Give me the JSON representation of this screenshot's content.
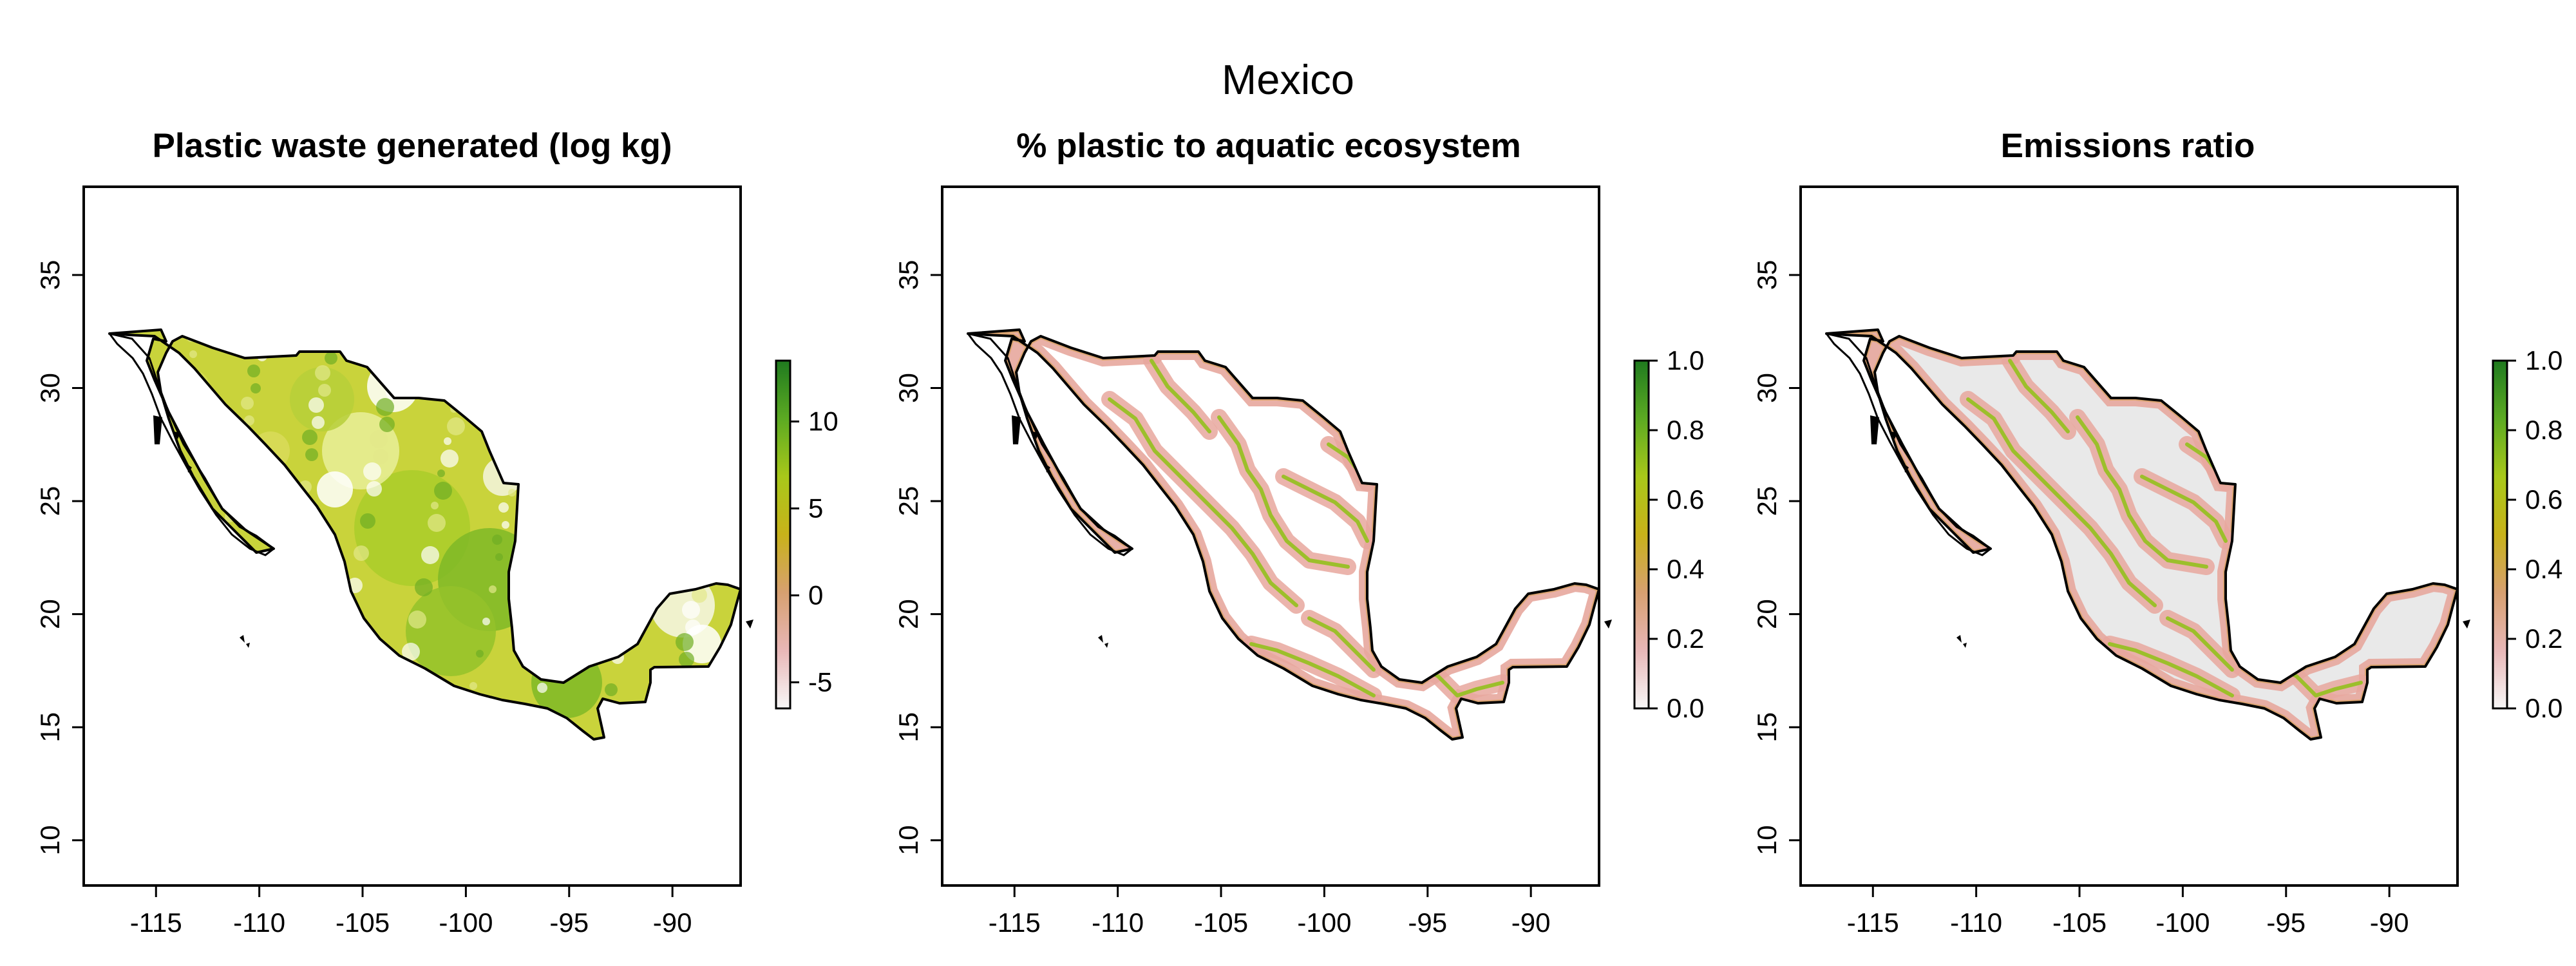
{
  "figure_title": "Mexico",
  "panels": [
    {
      "title": "Plastic waste generated (log kg)",
      "fill": "green-yellow",
      "colorbar": {
        "min": -6.5,
        "max": 13.5,
        "ticks": [
          "-5",
          "0",
          "5",
          "10"
        ],
        "tick_values": [
          -5,
          0,
          5,
          10
        ]
      }
    },
    {
      "title": "% plastic to aquatic ecosystem",
      "fill": "rivers-white",
      "colorbar": {
        "min": 0,
        "max": 1,
        "ticks": [
          "0.0",
          "0.2",
          "0.4",
          "0.6",
          "0.8",
          "1.0"
        ],
        "tick_values": [
          0,
          0.2,
          0.4,
          0.6,
          0.8,
          1.0
        ]
      }
    },
    {
      "title": "Emissions ratio",
      "fill": "rivers-grey",
      "colorbar": {
        "min": 0,
        "max": 1,
        "ticks": [
          "0.0",
          "0.2",
          "0.4",
          "0.6",
          "0.8",
          "1.0"
        ],
        "tick_values": [
          0,
          0.2,
          0.4,
          0.6,
          0.8,
          1.0
        ]
      }
    }
  ],
  "axes": {
    "x_ticks": [
      "-115",
      "-110",
      "-105",
      "-100",
      "-95",
      "-90"
    ],
    "x_values": [
      -115,
      -110,
      -105,
      -100,
      -95,
      -90
    ],
    "y_ticks": [
      "10",
      "15",
      "20",
      "25",
      "30",
      "35"
    ],
    "y_values": [
      10,
      15,
      20,
      25,
      30,
      35
    ],
    "xlim": [
      -118.5,
      -86.7
    ],
    "ylim": [
      8.0,
      38.9
    ]
  },
  "colors": {
    "ramp": [
      "#f7f7f7",
      "#e8b7b7",
      "#d7a070",
      "#c8b21a",
      "#a8c81a",
      "#5caa22",
      "#1f7a1f"
    ],
    "border": "#000000",
    "background_grey": "#e9e9e9",
    "river_halo": "#e7a79d",
    "river_core": "#9cbf2b"
  }
}
